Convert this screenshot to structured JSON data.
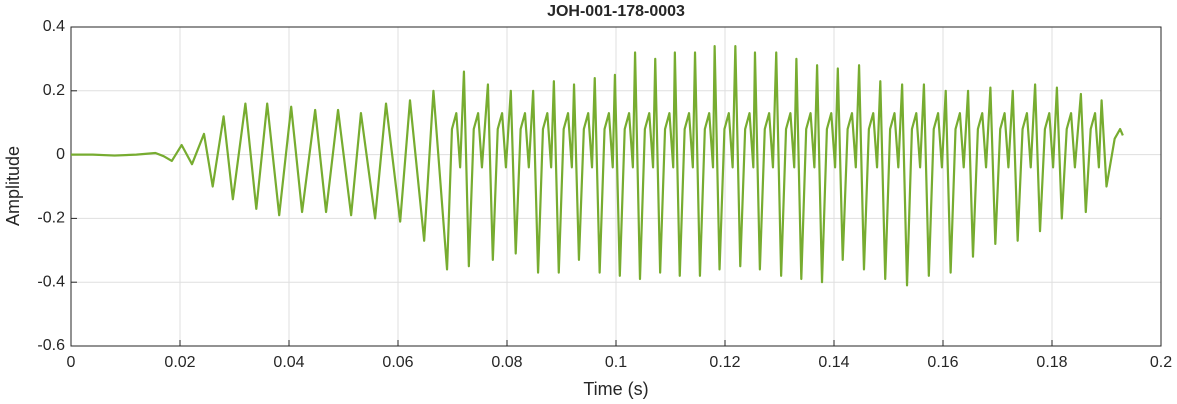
{
  "chart_data": {
    "type": "line",
    "title": "JOH-001-178-0003",
    "x_label": "Time (s)",
    "y_label": "Amplitude",
    "color": "#77ac30",
    "grid": true,
    "xlim": [
      0,
      0.2
    ],
    "xticks": [
      0,
      0.02,
      0.04,
      0.06,
      0.08,
      0.1,
      0.12,
      0.14,
      0.16,
      0.18,
      0.2
    ],
    "ylim": [
      -0.6,
      0.4
    ],
    "yticks": [
      -0.6,
      -0.4,
      -0.2,
      0,
      0.2,
      0.4
    ],
    "x": [
      0,
      0.004,
      0.008,
      0.012,
      0.0155,
      0.017,
      0.0185,
      0.0203,
      0.0222,
      0.0244,
      0.026,
      0.028,
      0.0297,
      0.032,
      0.034,
      0.036,
      0.0382,
      0.0404,
      0.0424,
      0.0448,
      0.0468,
      0.049,
      0.0514,
      0.0532,
      0.0558,
      0.0578,
      0.0604,
      0.0622,
      0.0648,
      0.0665,
      0.069,
      0.0699,
      0.0707,
      0.0714,
      0.0721,
      0.073,
      0.0739,
      0.0747,
      0.0754,
      0.0765,
      0.0774,
      0.0783,
      0.0791,
      0.0798,
      0.0807,
      0.0816,
      0.0825,
      0.0833,
      0.084,
      0.0848,
      0.0857,
      0.0866,
      0.0874,
      0.0881,
      0.0886,
      0.0895,
      0.0904,
      0.0912,
      0.0919,
      0.0923,
      0.0932,
      0.0941,
      0.0949,
      0.0956,
      0.0961,
      0.097,
      0.0979,
      0.0987,
      0.0994,
      0.0998,
      0.1007,
      0.1016,
      0.1024,
      0.1031,
      0.1035,
      0.1044,
      0.1053,
      0.1061,
      0.1068,
      0.1072,
      0.1081,
      0.109,
      0.1098,
      0.1105,
      0.1108,
      0.1117,
      0.1126,
      0.1134,
      0.1141,
      0.1145,
      0.1154,
      0.1163,
      0.1171,
      0.1178,
      0.1181,
      0.119,
      0.1199,
      0.1207,
      0.1214,
      0.1219,
      0.1228,
      0.1237,
      0.1245,
      0.1252,
      0.1255,
      0.1264,
      0.1273,
      0.1281,
      0.1288,
      0.1294,
      0.1303,
      0.1312,
      0.132,
      0.1327,
      0.1331,
      0.134,
      0.1349,
      0.1357,
      0.1364,
      0.1369,
      0.1378,
      0.1387,
      0.1395,
      0.1402,
      0.1407,
      0.1416,
      0.1425,
      0.1433,
      0.144,
      0.1446,
      0.1455,
      0.1464,
      0.1472,
      0.1479,
      0.1485,
      0.1494,
      0.1503,
      0.1511,
      0.1518,
      0.1525,
      0.1534,
      0.1543,
      0.1551,
      0.1558,
      0.1565,
      0.1574,
      0.1583,
      0.1591,
      0.1598,
      0.1605,
      0.1614,
      0.1623,
      0.1631,
      0.1638,
      0.1646,
      0.1655,
      0.1664,
      0.1672,
      0.1679,
      0.1687,
      0.1696,
      0.1705,
      0.1713,
      0.172,
      0.1728,
      0.1737,
      0.1746,
      0.1754,
      0.1761,
      0.1769,
      0.1778,
      0.1787,
      0.1795,
      0.1802,
      0.1809,
      0.1818,
      0.1827,
      0.1835,
      0.1842,
      0.1853,
      0.1862,
      0.1871,
      0.1879,
      0.1886,
      0.1891,
      0.19,
      0.1915,
      0.1925,
      0.193
    ],
    "values": [
      0,
      0,
      -0.003,
      0,
      0.005,
      -0.005,
      -0.02,
      0.03,
      -0.03,
      0.065,
      -0.1,
      0.12,
      -0.14,
      0.16,
      -0.17,
      0.16,
      -0.19,
      0.15,
      -0.18,
      0.14,
      -0.18,
      0.14,
      -0.19,
      0.13,
      -0.2,
      0.16,
      -0.21,
      0.17,
      -0.27,
      0.2,
      -0.36,
      0.08,
      0.13,
      -0.04,
      0.26,
      -0.35,
      0.08,
      0.13,
      -0.04,
      0.22,
      -0.33,
      0.08,
      0.13,
      -0.04,
      0.2,
      -0.31,
      0.08,
      0.13,
      -0.04,
      0.2,
      -0.37,
      0.08,
      0.13,
      -0.04,
      0.23,
      -0.37,
      0.08,
      0.13,
      -0.04,
      0.22,
      -0.33,
      0.08,
      0.13,
      -0.04,
      0.24,
      -0.37,
      0.08,
      0.13,
      -0.04,
      0.25,
      -0.38,
      0.08,
      0.13,
      -0.04,
      0.32,
      -0.39,
      0.08,
      0.13,
      -0.04,
      0.3,
      -0.37,
      0.08,
      0.13,
      -0.04,
      0.32,
      -0.38,
      0.08,
      0.13,
      -0.04,
      0.32,
      -0.38,
      0.08,
      0.13,
      -0.04,
      0.34,
      -0.36,
      0.08,
      0.13,
      -0.04,
      0.34,
      -0.35,
      0.08,
      0.13,
      -0.04,
      0.32,
      -0.36,
      0.08,
      0.13,
      -0.04,
      0.32,
      -0.38,
      0.08,
      0.13,
      -0.04,
      0.3,
      -0.39,
      0.08,
      0.13,
      -0.04,
      0.28,
      -0.4,
      0.08,
      0.13,
      -0.04,
      0.27,
      -0.33,
      0.08,
      0.13,
      -0.04,
      0.28,
      -0.36,
      0.08,
      0.13,
      -0.04,
      0.23,
      -0.39,
      0.08,
      0.13,
      -0.04,
      0.22,
      -0.41,
      0.08,
      0.13,
      -0.04,
      0.22,
      -0.38,
      0.08,
      0.13,
      -0.04,
      0.2,
      -0.37,
      0.08,
      0.13,
      -0.04,
      0.2,
      -0.32,
      0.08,
      0.13,
      -0.04,
      0.21,
      -0.28,
      0.08,
      0.13,
      -0.04,
      0.2,
      -0.27,
      0.08,
      0.13,
      -0.04,
      0.22,
      -0.24,
      0.08,
      0.13,
      -0.04,
      0.21,
      -0.2,
      0.08,
      0.13,
      -0.04,
      0.19,
      -0.18,
      0.08,
      0.13,
      -0.04,
      0.17,
      -0.1,
      0.05,
      0.08,
      0.06
    ]
  }
}
